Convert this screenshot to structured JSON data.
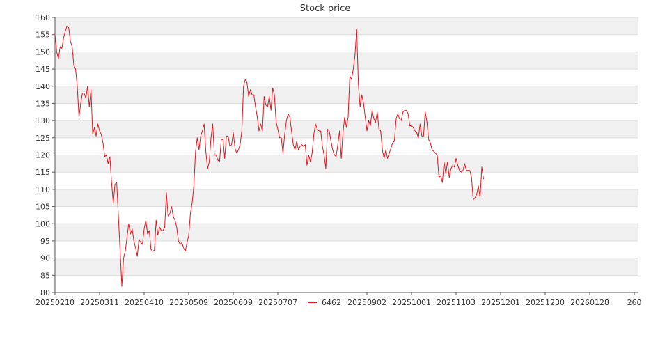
{
  "chart_data": {
    "type": "line",
    "title": "Stock price",
    "xlabel": "",
    "ylabel": "",
    "ylim": [
      80,
      160
    ],
    "y_ticks": [
      80,
      85,
      90,
      95,
      100,
      105,
      110,
      115,
      120,
      125,
      130,
      135,
      140,
      145,
      150,
      155,
      160
    ],
    "x_range": [
      0,
      340
    ],
    "x_ticks": [
      {
        "x": 0,
        "label": "20250210"
      },
      {
        "x": 26,
        "label": "20250311"
      },
      {
        "x": 52,
        "label": "20250410"
      },
      {
        "x": 78,
        "label": "20250509"
      },
      {
        "x": 104,
        "label": "20250609"
      },
      {
        "x": 130,
        "label": "20250707"
      },
      {
        "x": 182,
        "label": "20250902"
      },
      {
        "x": 208,
        "label": "20251001"
      },
      {
        "x": 234,
        "label": "20251103"
      },
      {
        "x": 260,
        "label": "20251201"
      },
      {
        "x": 286,
        "label": "20251230"
      },
      {
        "x": 312,
        "label": "20260128"
      },
      {
        "x": 338,
        "label": "260"
      }
    ],
    "grid": true,
    "legend": "bottom-center",
    "colors": {
      "series": "#e8141c",
      "band": "#f0f0f0",
      "axis": "#555555"
    },
    "series": [
      {
        "name": "6462",
        "values": [
          155.0,
          150.0,
          148.0,
          151.5,
          151.0,
          154.0,
          156.0,
          157.5,
          157.0,
          153.0,
          151.5,
          146.0,
          145.0,
          140.0,
          131.0,
          135.0,
          138.0,
          138.0,
          136.5,
          140.0,
          134.0,
          139.0,
          126.0,
          128.0,
          125.5,
          129.0,
          127.0,
          126.0,
          123.5,
          119.5,
          120.0,
          117.5,
          119.5,
          112.0,
          106.0,
          111.5,
          112.0,
          102.0,
          92.0,
          81.8,
          90.0,
          92.0,
          96.0,
          100.0,
          97.0,
          98.5,
          95.0,
          93.0,
          90.5,
          95.5,
          94.5,
          94.0,
          98.5,
          101.0,
          97.0,
          98.0,
          92.5,
          92.0,
          92.3,
          101.0,
          96.7,
          99.0,
          98.0,
          98.0,
          99.0,
          109.0,
          102.0,
          103.0,
          105.0,
          102.0,
          101.0,
          99.0,
          95.0,
          94.0,
          94.5,
          93.0,
          92.0,
          94.5,
          96.5,
          103.0,
          106.0,
          111.0,
          121.0,
          125.0,
          121.5,
          125.5,
          127.0,
          129.0,
          121.0,
          116.0,
          118.0,
          125.0,
          129.0,
          120.0,
          120.0,
          118.5,
          118.0,
          124.5,
          124.5,
          119.0,
          125.5,
          125.5,
          122.5,
          123.0,
          126.5,
          122.0,
          120.5,
          121.5,
          123.0,
          127.0,
          140.0,
          142.0,
          141.0,
          137.0,
          139.0,
          137.5,
          137.5,
          134.0,
          131.0,
          127.0,
          129.0,
          127.0,
          137.0,
          134.5,
          134.0,
          137.0,
          133.0,
          139.5,
          137.5,
          129.5,
          127.5,
          125.0,
          125.0,
          120.5,
          126.0,
          130.0,
          132.0,
          131.0,
          127.0,
          123.0,
          121.5,
          124.0,
          121.5,
          122.5,
          123.0,
          122.5,
          123.0,
          117.0,
          120.0,
          118.0,
          120.5,
          126.0,
          129.0,
          127.5,
          127.0,
          127.0,
          122.5,
          120.0,
          116.0,
          127.5,
          127.0,
          124.0,
          121.5,
          120.0,
          119.5,
          123.0,
          127.0,
          119.0,
          126.5,
          131.0,
          128.0,
          131.0,
          143.0,
          142.0,
          145.0,
          149.0,
          156.5,
          140.5,
          134.0,
          137.5,
          135.0,
          131.0,
          127.0,
          130.0,
          128.5,
          133.0,
          130.5,
          129.5,
          132.5,
          127.5,
          127.0,
          121.5,
          119.0,
          121.5,
          119.0,
          120.5,
          122.0,
          123.5,
          124.0,
          130.5,
          132.0,
          130.5,
          130.0,
          132.5,
          133.0,
          133.0,
          132.0,
          128.5,
          128.5,
          128.0,
          127.0,
          126.5,
          125.0,
          129.0,
          125.5,
          125.5,
          132.5,
          129.5,
          124.5,
          123.5,
          121.5,
          121.0,
          120.5,
          120.0,
          113.5,
          114.0,
          112.0,
          118.0,
          114.5,
          118.0,
          113.5,
          116.0,
          117.0,
          116.5,
          119.0,
          117.0,
          115.5,
          115.0,
          115.5,
          117.5,
          115.5,
          115.5,
          115.5,
          113.5,
          107.0,
          107.5,
          108.5,
          111.0,
          107.5,
          116.5,
          113.0
        ]
      }
    ]
  }
}
